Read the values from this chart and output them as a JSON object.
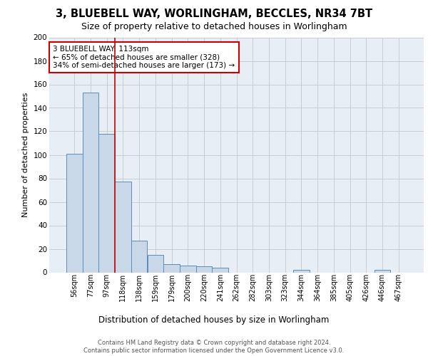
{
  "title_line1": "3, BLUEBELL WAY, WORLINGHAM, BECCLES, NR34 7BT",
  "title_line2": "Size of property relative to detached houses in Worlingham",
  "xlabel": "Distribution of detached houses by size in Worlingham",
  "ylabel": "Number of detached properties",
  "bar_labels": [
    "56sqm",
    "77sqm",
    "97sqm",
    "118sqm",
    "138sqm",
    "159sqm",
    "179sqm",
    "200sqm",
    "220sqm",
    "241sqm",
    "262sqm",
    "282sqm",
    "303sqm",
    "323sqm",
    "344sqm",
    "364sqm",
    "385sqm",
    "405sqm",
    "426sqm",
    "446sqm",
    "467sqm"
  ],
  "bar_values": [
    101,
    153,
    118,
    77,
    27,
    15,
    7,
    6,
    5,
    4,
    0,
    0,
    0,
    0,
    2,
    0,
    0,
    0,
    0,
    2,
    0
  ],
  "bar_color": "#c8d8e8",
  "bar_edge_color": "#5b8db8",
  "vline_x_idx": 2,
  "vline_color": "#cc0000",
  "annotation_text": "3 BLUEBELL WAY: 113sqm\n← 65% of detached houses are smaller (328)\n34% of semi-detached houses are larger (173) →",
  "annotation_box_color": "#ffffff",
  "annotation_box_edge_color": "#cc0000",
  "ylim": [
    0,
    200
  ],
  "yticks": [
    0,
    20,
    40,
    60,
    80,
    100,
    120,
    140,
    160,
    180,
    200
  ],
  "grid_color": "#cccccc",
  "background_color": "#e8eef5",
  "footer_text": "Contains HM Land Registry data © Crown copyright and database right 2024.\nContains public sector information licensed under the Open Government Licence v3.0.",
  "fig_bg_color": "#ffffff",
  "title1_fontsize": 10.5,
  "title2_fontsize": 9,
  "ylabel_fontsize": 8,
  "xlabel_fontsize": 8.5,
  "tick_fontsize": 7,
  "annotation_fontsize": 7.5,
  "footer_fontsize": 6
}
